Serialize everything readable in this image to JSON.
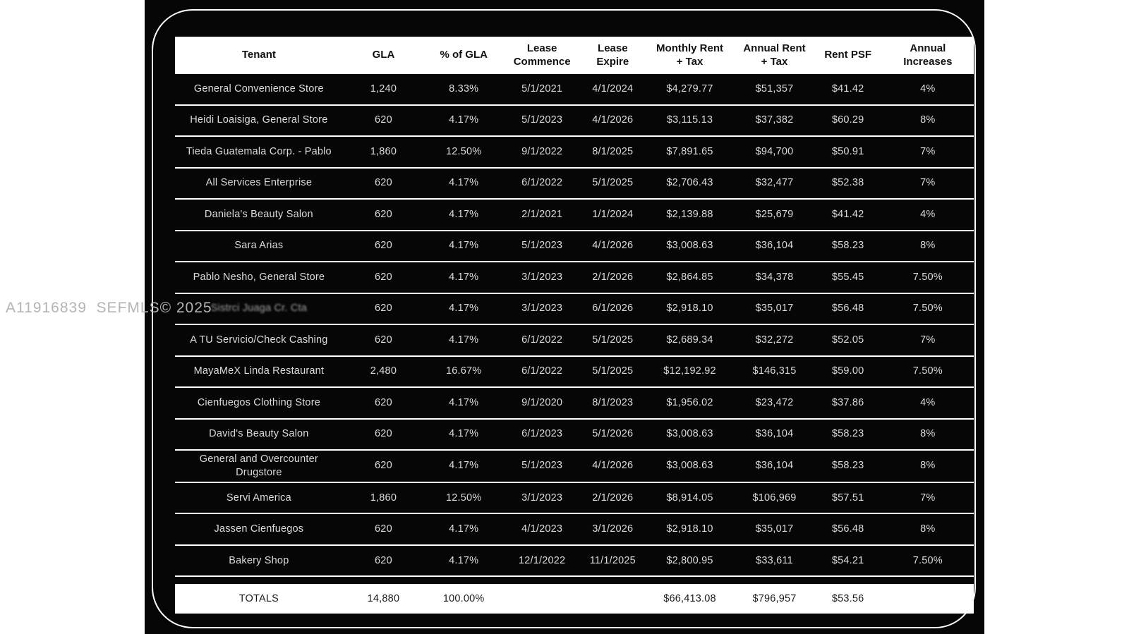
{
  "watermark": {
    "text": "A11916839  SEFMLS© 2025"
  },
  "colors": {
    "page_background": "#ffffff",
    "card_background": "#060606",
    "header_background": "#ffffff",
    "header_text": "#111111",
    "body_text": "#dcdcdc",
    "separator": "#ffffff"
  },
  "table": {
    "headers": [
      {
        "label": "Tenant"
      },
      {
        "label": "GLA"
      },
      {
        "label": "% of GLA"
      },
      {
        "label": "Lease\nCommence"
      },
      {
        "label": "Lease\nExpire"
      },
      {
        "label": "Monthly Rent\n+ Tax"
      },
      {
        "label": "Annual Rent\n+ Tax"
      },
      {
        "label": "Rent PSF"
      },
      {
        "label": "Annual\nIncreases"
      }
    ],
    "rows": [
      {
        "tenant": "General Convenience Store",
        "gla": "1,240",
        "pct_gla": "8.33%",
        "lease_commence": "5/1/2021",
        "lease_expire": "4/1/2024",
        "monthly_rent": "$4,279.77",
        "annual_rent": "$51,357",
        "rent_psf": "$41.42",
        "annual_increase": "4%"
      },
      {
        "tenant": "Heidi Loaisiga, General Store",
        "gla": "620",
        "pct_gla": "4.17%",
        "lease_commence": "5/1/2023",
        "lease_expire": "4/1/2026",
        "monthly_rent": "$3,115.13",
        "annual_rent": "$37,382",
        "rent_psf": "$60.29",
        "annual_increase": "8%"
      },
      {
        "tenant": "Tieda Guatemala Corp. - Pablo",
        "gla": "1,860",
        "pct_gla": "12.50%",
        "lease_commence": "9/1/2022",
        "lease_expire": "8/1/2025",
        "monthly_rent": "$7,891.65",
        "annual_rent": "$94,700",
        "rent_psf": "$50.91",
        "annual_increase": "7%"
      },
      {
        "tenant": "All Services Enterprise",
        "gla": "620",
        "pct_gla": "4.17%",
        "lease_commence": "6/1/2022",
        "lease_expire": "5/1/2025",
        "monthly_rent": "$2,706.43",
        "annual_rent": "$32,477",
        "rent_psf": "$52.38",
        "annual_increase": "7%"
      },
      {
        "tenant": "Daniela's Beauty Salon",
        "gla": "620",
        "pct_gla": "4.17%",
        "lease_commence": "2/1/2021",
        "lease_expire": "1/1/2024",
        "monthly_rent": "$2,139.88",
        "annual_rent": "$25,679",
        "rent_psf": "$41.42",
        "annual_increase": "4%"
      },
      {
        "tenant": "Sara Arias",
        "gla": "620",
        "pct_gla": "4.17%",
        "lease_commence": "5/1/2023",
        "lease_expire": "4/1/2026",
        "monthly_rent": "$3,008.63",
        "annual_rent": "$36,104",
        "rent_psf": "$58.23",
        "annual_increase": "8%"
      },
      {
        "tenant": "Pablo Nesho, General Store",
        "gla": "620",
        "pct_gla": "4.17%",
        "lease_commence": "3/1/2023",
        "lease_expire": "2/1/2026",
        "monthly_rent": "$2,864.85",
        "annual_rent": "$34,378",
        "rent_psf": "$55.45",
        "annual_increase": "7.50%"
      },
      {
        "tenant": "Sistrci Juaga Cr. Cta",
        "obscured": true,
        "gla": "620",
        "pct_gla": "4.17%",
        "lease_commence": "3/1/2023",
        "lease_expire": "6/1/2026",
        "monthly_rent": "$2,918.10",
        "annual_rent": "$35,017",
        "rent_psf": "$56.48",
        "annual_increase": "7.50%"
      },
      {
        "tenant": "A TU Servicio/Check Cashing",
        "gla": "620",
        "pct_gla": "4.17%",
        "lease_commence": "6/1/2022",
        "lease_expire": "5/1/2025",
        "monthly_rent": "$2,689.34",
        "annual_rent": "$32,272",
        "rent_psf": "$52.05",
        "annual_increase": "7%"
      },
      {
        "tenant": "MayaMeX Linda Restaurant",
        "gla": "2,480",
        "pct_gla": "16.67%",
        "lease_commence": "6/1/2022",
        "lease_expire": "5/1/2025",
        "monthly_rent": "$12,192.92",
        "annual_rent": "$146,315",
        "rent_psf": "$59.00",
        "annual_increase": "7.50%"
      },
      {
        "tenant": "Cienfuegos Clothing Store",
        "gla": "620",
        "pct_gla": "4.17%",
        "lease_commence": "9/1/2020",
        "lease_expire": "8/1/2023",
        "monthly_rent": "$1,956.02",
        "annual_rent": "$23,472",
        "rent_psf": "$37.86",
        "annual_increase": "4%"
      },
      {
        "tenant": "David's Beauty Salon",
        "gla": "620",
        "pct_gla": "4.17%",
        "lease_commence": "6/1/2023",
        "lease_expire": "5/1/2026",
        "monthly_rent": "$3,008.63",
        "annual_rent": "$36,104",
        "rent_psf": "$58.23",
        "annual_increase": "8%"
      },
      {
        "tenant": "General and Overcounter Drugstore",
        "gla": "620",
        "pct_gla": "4.17%",
        "lease_commence": "5/1/2023",
        "lease_expire": "4/1/2026",
        "monthly_rent": "$3,008.63",
        "annual_rent": "$36,104",
        "rent_psf": "$58.23",
        "annual_increase": "8%"
      },
      {
        "tenant": "Servi America",
        "gla": "1,860",
        "pct_gla": "12.50%",
        "lease_commence": "3/1/2023",
        "lease_expire": "2/1/2026",
        "monthly_rent": "$8,914.05",
        "annual_rent": "$106,969",
        "rent_psf": "$57.51",
        "annual_increase": "7%"
      },
      {
        "tenant": "Jassen Cienfuegos",
        "gla": "620",
        "pct_gla": "4.17%",
        "lease_commence": "4/1/2023",
        "lease_expire": "3/1/2026",
        "monthly_rent": "$2,918.10",
        "annual_rent": "$35,017",
        "rent_psf": "$56.48",
        "annual_increase": "8%"
      },
      {
        "tenant": "Bakery Shop",
        "gla": "620",
        "pct_gla": "4.17%",
        "lease_commence": "12/1/2022",
        "lease_expire": "11/1/2025",
        "monthly_rent": "$2,800.95",
        "annual_rent": "$33,611",
        "rent_psf": "$54.21",
        "annual_increase": "7.50%"
      }
    ],
    "totals": {
      "tenant": "TOTALS",
      "gla": "14,880",
      "pct_gla": "100.00%",
      "lease_commence": "",
      "lease_expire": "",
      "monthly_rent": "$66,413.08",
      "annual_rent": "$796,957",
      "rent_psf": "$53.56",
      "annual_increase": ""
    }
  }
}
